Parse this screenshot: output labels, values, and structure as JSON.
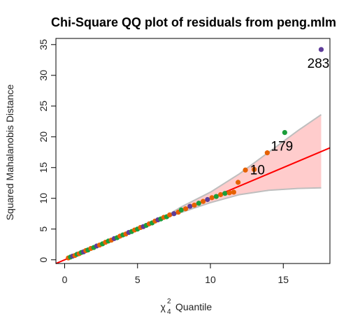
{
  "chart_data": {
    "type": "scatter",
    "title": "Chi-Square QQ plot of residuals from peng.mlm",
    "xlabel_symbol": "χ",
    "xlabel_sup": "2",
    "xlabel_sub": "4",
    "xlabel_text": "Quantile",
    "ylabel": "Squared Mahalanobis Distance",
    "xlim": [
      -0.6,
      18.2
    ],
    "ylim": [
      -0.6,
      36.0
    ],
    "xticks": [
      0,
      5,
      10,
      15
    ],
    "yticks": [
      0,
      5,
      10,
      15,
      20,
      25,
      30,
      35
    ],
    "reference_line": {
      "intercept": 0.0,
      "slope": 1.0,
      "color": "#ff0000"
    },
    "envelope": {
      "fill": "#ffcccc",
      "border": "#bebebe",
      "lower": [
        [
          6.5,
          6.5
        ],
        [
          8,
          7.7
        ],
        [
          10,
          9.3
        ],
        [
          12,
          10.6
        ],
        [
          14,
          11.3
        ],
        [
          16,
          11.6
        ],
        [
          17.6,
          11.7
        ]
      ],
      "upper": [
        [
          6.5,
          6.5
        ],
        [
          8,
          8.6
        ],
        [
          10,
          11.0
        ],
        [
          12,
          14.0
        ],
        [
          14,
          17.5
        ],
        [
          16,
          21.0
        ],
        [
          17.6,
          23.6
        ]
      ]
    },
    "series_colors": [
      "#e66101",
      "#1b9e3a",
      "#5e3c99"
    ],
    "points": [
      [
        0.25,
        0.3,
        0
      ],
      [
        0.4,
        0.45,
        1
      ],
      [
        0.55,
        0.6,
        2
      ],
      [
        0.7,
        0.7,
        0
      ],
      [
        0.85,
        0.9,
        1
      ],
      [
        1.0,
        1.0,
        0
      ],
      [
        1.15,
        1.2,
        1
      ],
      [
        1.3,
        1.3,
        2
      ],
      [
        1.45,
        1.5,
        0
      ],
      [
        1.6,
        1.6,
        1
      ],
      [
        1.8,
        1.85,
        0
      ],
      [
        2.0,
        2.0,
        1
      ],
      [
        2.2,
        2.25,
        2
      ],
      [
        2.4,
        2.4,
        0
      ],
      [
        2.6,
        2.6,
        1
      ],
      [
        2.8,
        2.85,
        0
      ],
      [
        3.0,
        3.05,
        1
      ],
      [
        3.2,
        3.2,
        0
      ],
      [
        3.4,
        3.45,
        2
      ],
      [
        3.6,
        3.6,
        1
      ],
      [
        3.8,
        3.85,
        0
      ],
      [
        4.0,
        4.05,
        1
      ],
      [
        4.2,
        4.2,
        0
      ],
      [
        4.4,
        4.45,
        2
      ],
      [
        4.6,
        4.6,
        1
      ],
      [
        4.8,
        4.85,
        0
      ],
      [
        5.0,
        5.0,
        1
      ],
      [
        5.2,
        5.25,
        0
      ],
      [
        5.4,
        5.4,
        2
      ],
      [
        5.6,
        5.6,
        1
      ],
      [
        5.8,
        5.85,
        0
      ],
      [
        6.0,
        6.0,
        1
      ],
      [
        6.2,
        6.3,
        0
      ],
      [
        6.4,
        6.5,
        2
      ],
      [
        6.6,
        6.65,
        1
      ],
      [
        6.8,
        6.9,
        0
      ],
      [
        7.0,
        7.0,
        1
      ],
      [
        7.2,
        7.3,
        0
      ],
      [
        7.5,
        7.5,
        2
      ],
      [
        7.8,
        7.75,
        0
      ],
      [
        8.0,
        8.1,
        1
      ],
      [
        8.3,
        8.3,
        0
      ],
      [
        8.6,
        8.7,
        2
      ],
      [
        8.9,
        8.9,
        0
      ],
      [
        9.2,
        9.2,
        1
      ],
      [
        9.5,
        9.5,
        0
      ],
      [
        9.8,
        9.8,
        2
      ],
      [
        10.1,
        10.1,
        0
      ],
      [
        10.4,
        10.3,
        1
      ],
      [
        10.7,
        10.6,
        0
      ],
      [
        11.0,
        10.8,
        1
      ],
      [
        11.3,
        10.9,
        0
      ],
      [
        11.6,
        11.0,
        0
      ],
      [
        11.9,
        12.6,
        0
      ],
      [
        12.4,
        14.6,
        0
      ],
      [
        13.0,
        14.7,
        0
      ],
      [
        13.9,
        17.4,
        0
      ],
      [
        15.1,
        20.7,
        1
      ],
      [
        17.6,
        34.2,
        2
      ]
    ],
    "annotations": [
      {
        "text": "283",
        "x": 17.6,
        "y": 34.2
      },
      {
        "text": "179",
        "x": 15.1,
        "y": 20.7
      },
      {
        "text": "10",
        "x": 13.9,
        "y": 17.4
      }
    ]
  }
}
